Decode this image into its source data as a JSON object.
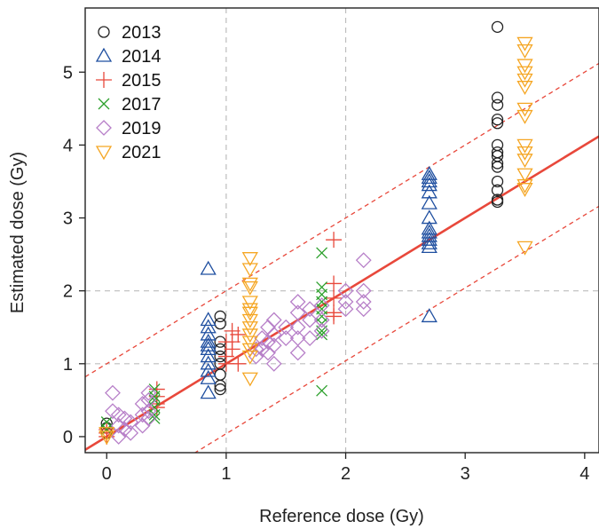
{
  "chart_data": {
    "type": "scatter",
    "xlabel": "Reference dose (Gy)",
    "ylabel": "Estimated dose (Gy)",
    "xlim": [
      -0.18,
      4.12
    ],
    "ylim": [
      -0.22,
      5.88
    ],
    "xticks": [
      0,
      1,
      2,
      3,
      4
    ],
    "yticks": [
      0,
      1,
      2,
      3,
      4,
      5
    ],
    "dashed_gridlines": {
      "x": [
        1,
        2
      ],
      "y": [
        1,
        2
      ]
    },
    "legend_position": "top-left",
    "colors": {
      "2013": "#222222",
      "2014": "#1f4fa0",
      "2015": "#e8483b",
      "2017": "#2ca02c",
      "2019": "#b77fc8",
      "2021": "#f5a623",
      "fit": "#e8483b"
    },
    "fit_line": {
      "slope": 1.0,
      "intercept": 0.0
    },
    "bounds_lines": [
      {
        "slope": 1.0,
        "intercept": 1.0
      },
      {
        "slope": 1.0,
        "intercept": -0.96
      }
    ],
    "series": [
      {
        "name": "2013",
        "marker": "circle",
        "points": [
          [
            0,
            0.18
          ],
          [
            0,
            0.12
          ],
          [
            0,
            0.05
          ],
          [
            0.95,
            1.65
          ],
          [
            0.95,
            1.55
          ],
          [
            0.95,
            1.3
          ],
          [
            0.95,
            1.2
          ],
          [
            0.95,
            1.1
          ],
          [
            0.95,
            1.0
          ],
          [
            0.95,
            0.85
          ],
          [
            0.95,
            0.7
          ],
          [
            0.95,
            0.65
          ],
          [
            3.27,
            5.62
          ],
          [
            3.27,
            4.65
          ],
          [
            3.27,
            4.55
          ],
          [
            3.27,
            4.35
          ],
          [
            3.27,
            4.3
          ],
          [
            3.27,
            4.0
          ],
          [
            3.27,
            3.9
          ],
          [
            3.27,
            3.85
          ],
          [
            3.27,
            3.75
          ],
          [
            3.27,
            3.7
          ],
          [
            3.27,
            3.5
          ],
          [
            3.27,
            3.38
          ],
          [
            3.27,
            3.25
          ],
          [
            3.27,
            3.22
          ]
        ]
      },
      {
        "name": "2014",
        "marker": "triangle-up",
        "points": [
          [
            0.85,
            2.3
          ],
          [
            0.85,
            1.6
          ],
          [
            0.85,
            1.5
          ],
          [
            0.85,
            1.4
          ],
          [
            0.85,
            1.3
          ],
          [
            0.85,
            1.25
          ],
          [
            0.85,
            1.2
          ],
          [
            0.85,
            1.1
          ],
          [
            0.85,
            1.0
          ],
          [
            0.85,
            0.9
          ],
          [
            0.85,
            0.8
          ],
          [
            0.85,
            0.6
          ],
          [
            2.7,
            3.6
          ],
          [
            2.7,
            3.55
          ],
          [
            2.7,
            3.5
          ],
          [
            2.7,
            3.45
          ],
          [
            2.7,
            3.35
          ],
          [
            2.7,
            3.2
          ],
          [
            2.7,
            3.0
          ],
          [
            2.7,
            2.85
          ],
          [
            2.7,
            2.8
          ],
          [
            2.7,
            2.75
          ],
          [
            2.7,
            2.7
          ],
          [
            2.7,
            2.65
          ],
          [
            2.7,
            2.6
          ],
          [
            2.7,
            1.65
          ]
        ]
      },
      {
        "name": "2015",
        "marker": "plus",
        "points": [
          [
            0,
            0.1
          ],
          [
            0,
            0.05
          ],
          [
            0,
            0.0
          ],
          [
            0.42,
            0.65
          ],
          [
            0.42,
            0.55
          ],
          [
            0.42,
            0.45
          ],
          [
            0.42,
            0.4
          ],
          [
            1.0,
            1.3
          ],
          [
            1.0,
            1.1
          ],
          [
            1.0,
            1.0
          ],
          [
            1.05,
            1.45
          ],
          [
            1.05,
            1.3
          ],
          [
            1.05,
            1.2
          ],
          [
            1.1,
            1.4
          ],
          [
            1.1,
            1.0
          ],
          [
            1.9,
            2.7
          ],
          [
            1.9,
            2.1
          ],
          [
            1.9,
            1.9
          ],
          [
            1.9,
            1.7
          ],
          [
            1.9,
            1.65
          ]
        ]
      },
      {
        "name": "2017",
        "marker": "x",
        "points": [
          [
            0,
            0.2
          ],
          [
            0,
            0.1
          ],
          [
            0.4,
            0.65
          ],
          [
            0.4,
            0.55
          ],
          [
            0.4,
            0.5
          ],
          [
            0.4,
            0.4
          ],
          [
            0.4,
            0.3
          ],
          [
            0.4,
            0.25
          ],
          [
            1.8,
            2.52
          ],
          [
            1.8,
            2.05
          ],
          [
            1.8,
            1.95
          ],
          [
            1.8,
            1.85
          ],
          [
            1.8,
            1.75
          ],
          [
            1.8,
            1.65
          ],
          [
            1.8,
            1.55
          ],
          [
            1.8,
            1.45
          ],
          [
            1.8,
            1.4
          ],
          [
            1.8,
            0.63
          ]
        ]
      },
      {
        "name": "2019",
        "marker": "diamond",
        "points": [
          [
            0.05,
            0.6
          ],
          [
            0.05,
            0.35
          ],
          [
            0.1,
            0.3
          ],
          [
            0.1,
            0.15
          ],
          [
            0.1,
            0.0
          ],
          [
            0.15,
            0.25
          ],
          [
            0.15,
            0.1
          ],
          [
            0.2,
            0.2
          ],
          [
            0.2,
            0.05
          ],
          [
            0.3,
            0.3
          ],
          [
            0.3,
            0.45
          ],
          [
            0.3,
            0.15
          ],
          [
            0.35,
            0.6
          ],
          [
            0.35,
            0.5
          ],
          [
            0.35,
            0.35
          ],
          [
            0.35,
            0.25
          ],
          [
            1.25,
            1.2
          ],
          [
            1.25,
            1.1
          ],
          [
            1.3,
            1.35
          ],
          [
            1.3,
            1.2
          ],
          [
            1.35,
            1.5
          ],
          [
            1.35,
            1.3
          ],
          [
            1.35,
            1.15
          ],
          [
            1.4,
            1.6
          ],
          [
            1.4,
            1.4
          ],
          [
            1.4,
            1.25
          ],
          [
            1.4,
            1.0
          ],
          [
            1.5,
            1.5
          ],
          [
            1.5,
            1.35
          ],
          [
            1.6,
            1.85
          ],
          [
            1.6,
            1.7
          ],
          [
            1.6,
            1.5
          ],
          [
            1.6,
            1.35
          ],
          [
            1.6,
            1.15
          ],
          [
            1.7,
            1.75
          ],
          [
            1.7,
            1.6
          ],
          [
            1.7,
            1.35
          ],
          [
            1.8,
            1.8
          ],
          [
            1.8,
            1.6
          ],
          [
            1.8,
            1.45
          ],
          [
            2.0,
            2.0
          ],
          [
            2.0,
            1.85
          ],
          [
            2.0,
            1.75
          ],
          [
            2.15,
            2.42
          ],
          [
            2.15,
            2.0
          ],
          [
            2.15,
            1.85
          ],
          [
            2.15,
            1.75
          ]
        ]
      },
      {
        "name": "2021",
        "marker": "triangle-down",
        "points": [
          [
            0,
            0.05
          ],
          [
            0,
            0.0
          ],
          [
            1.2,
            2.45
          ],
          [
            1.2,
            2.3
          ],
          [
            1.2,
            2.1
          ],
          [
            1.2,
            2.05
          ],
          [
            1.2,
            1.85
          ],
          [
            1.2,
            1.75
          ],
          [
            1.2,
            1.7
          ],
          [
            1.2,
            1.6
          ],
          [
            1.2,
            1.5
          ],
          [
            1.2,
            1.4
          ],
          [
            1.2,
            1.3
          ],
          [
            1.2,
            1.2
          ],
          [
            1.2,
            1.1
          ],
          [
            1.2,
            0.8
          ],
          [
            3.5,
            5.4
          ],
          [
            3.5,
            5.3
          ],
          [
            3.5,
            5.1
          ],
          [
            3.5,
            5.0
          ],
          [
            3.5,
            4.9
          ],
          [
            3.5,
            4.8
          ],
          [
            3.5,
            4.5
          ],
          [
            3.5,
            4.4
          ],
          [
            3.5,
            4.0
          ],
          [
            3.5,
            3.9
          ],
          [
            3.5,
            3.8
          ],
          [
            3.5,
            3.6
          ],
          [
            3.5,
            3.45
          ],
          [
            3.5,
            3.4
          ],
          [
            3.5,
            2.6
          ]
        ]
      }
    ]
  }
}
